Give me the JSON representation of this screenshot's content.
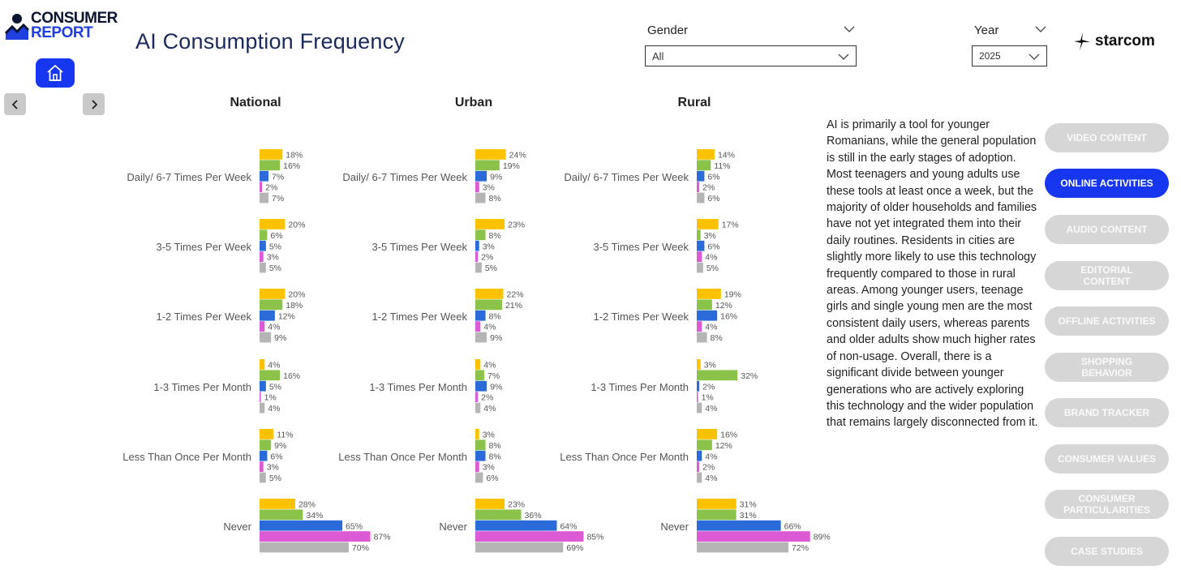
{
  "brand": {
    "logo_line1": "CONSUMER",
    "logo_line2": "REPORT",
    "agency": "starcom"
  },
  "page": {
    "title": "AI Consumption Frequency"
  },
  "filters": {
    "gender": {
      "label": "Gender",
      "value": "All"
    },
    "year": {
      "label": "Year",
      "value": "2025"
    }
  },
  "icons": [
    "home-icon",
    "chevron-left-icon",
    "chevron-right-icon",
    "chevron-down-icon",
    "starcom-star-icon"
  ],
  "narrative": "AI is primarily a tool for younger Romanians, while the general population is still in the early stages of adoption. Most teenagers and young adults use these tools at least once a week, but the majority of older households and families have not yet integrated them into their daily routines. Residents in cities are slightly more likely to use this technology frequently compared to those in rural areas. Among younger users, teenage girls and single young men are the most consistent daily users, whereas parents and older adults show much higher rates of non-usage. Overall, there is a significant divide between younger generations who are actively exploring this technology and the wider population that remains largely disconnected from it.",
  "menu": [
    {
      "label": "VIDEO CONTENT",
      "active": false
    },
    {
      "label": "ONLINE ACTIVITIES",
      "active": true
    },
    {
      "label": "AUDIO CONTENT",
      "active": false
    },
    {
      "label": "EDITORIAL CONTENT",
      "active": false
    },
    {
      "label": "OFFLINE ACTIVITIES",
      "active": false
    },
    {
      "label": "SHOPPING BEHAVIOR",
      "active": false
    },
    {
      "label": "BRAND TRACKER",
      "active": false
    },
    {
      "label": "CONSUMER VALUES",
      "active": false
    },
    {
      "label": "CONSUMER PARTICULARITIES",
      "active": false
    },
    {
      "label": "CASE STUDIES",
      "active": false
    }
  ],
  "colors": [
    "#fcc200",
    "#8bc34a",
    "#2a6bd9",
    "#dd5ad5",
    "#b5b5b5"
  ],
  "chart_data": [
    {
      "type": "bar",
      "title": "National",
      "categories": [
        "Daily/ 6-7 Times Per Week",
        "3-5 Times Per Week",
        "1-2 Times Per Week",
        "1-3 Times Per Month",
        "Less Than Once Per Month",
        "Never"
      ],
      "series_values": [
        [
          18,
          16,
          7,
          2,
          7
        ],
        [
          20,
          6,
          5,
          3,
          5
        ],
        [
          20,
          18,
          12,
          4,
          9
        ],
        [
          4,
          16,
          5,
          1,
          4
        ],
        [
          11,
          9,
          6,
          3,
          5
        ],
        [
          28,
          34,
          65,
          87,
          70
        ]
      ],
      "xlim": [
        0,
        100
      ]
    },
    {
      "type": "bar",
      "title": "Urban",
      "categories": [
        "Daily/ 6-7 Times Per Week",
        "3-5 Times Per Week",
        "1-2 Times Per Week",
        "1-3 Times Per Month",
        "Less Than Once Per Month",
        "Never"
      ],
      "series_values": [
        [
          24,
          19,
          9,
          3,
          8
        ],
        [
          23,
          8,
          3,
          2,
          5
        ],
        [
          22,
          21,
          8,
          4,
          9
        ],
        [
          4,
          7,
          9,
          2,
          4
        ],
        [
          3,
          8,
          8,
          3,
          6
        ],
        [
          23,
          36,
          64,
          85,
          69
        ]
      ],
      "xlim": [
        0,
        100
      ]
    },
    {
      "type": "bar",
      "title": "Rural",
      "categories": [
        "Daily/ 6-7 Times Per Week",
        "3-5 Times Per Week",
        "1-2 Times Per Week",
        "1-3 Times Per Month",
        "Less Than Once Per Month",
        "Never"
      ],
      "series_values": [
        [
          14,
          11,
          6,
          2,
          6
        ],
        [
          17,
          3,
          6,
          4,
          5
        ],
        [
          19,
          12,
          16,
          4,
          8
        ],
        [
          3,
          32,
          2,
          1,
          4
        ],
        [
          16,
          12,
          4,
          2,
          4
        ],
        [
          31,
          31,
          66,
          89,
          72
        ]
      ],
      "xlim": [
        0,
        100
      ]
    }
  ]
}
